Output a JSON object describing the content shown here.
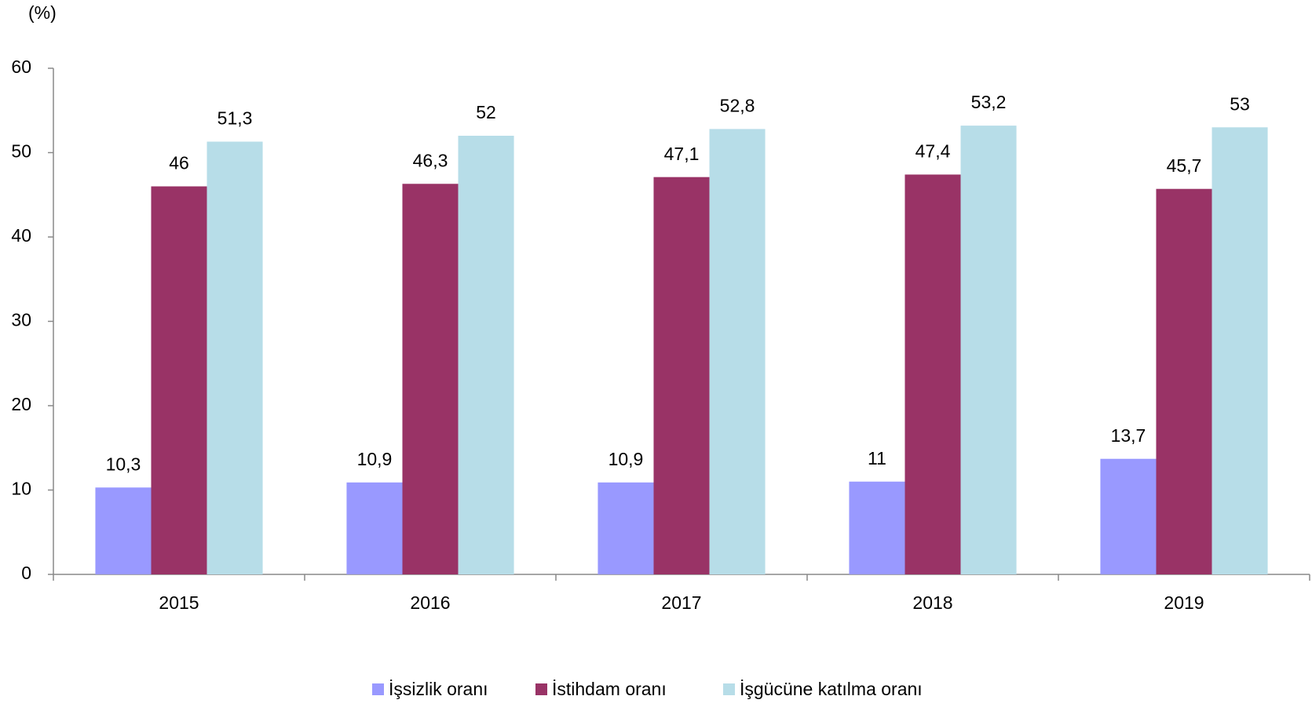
{
  "chart_data": {
    "type": "bar",
    "unit_label": "(%)",
    "categories": [
      "2015",
      "2016",
      "2017",
      "2018",
      "2019"
    ],
    "series": [
      {
        "name": "İşsizlik oranı",
        "color": "#9999ff",
        "values": [
          10.3,
          10.9,
          10.9,
          11,
          13.7
        ],
        "value_labels": [
          "10,3",
          "10,9",
          "10,9",
          "11",
          "13,7"
        ]
      },
      {
        "name": "İstihdam oranı",
        "color": "#993366",
        "values": [
          46,
          46.3,
          47.1,
          47.4,
          45.7
        ],
        "value_labels": [
          "46",
          "46,3",
          "47,1",
          "47,4",
          "45,7"
        ]
      },
      {
        "name": "İşgücüne katılma oranı",
        "color": "#b7dde8",
        "values": [
          51.3,
          52,
          52.8,
          53.2,
          53
        ],
        "value_labels": [
          "51,3",
          "52",
          "52,8",
          "53,2",
          "53"
        ]
      }
    ],
    "ylim": [
      0,
      60
    ],
    "yticks": [
      0,
      10,
      20,
      30,
      40,
      50,
      60
    ],
    "grid": false,
    "legend": "bottom"
  }
}
